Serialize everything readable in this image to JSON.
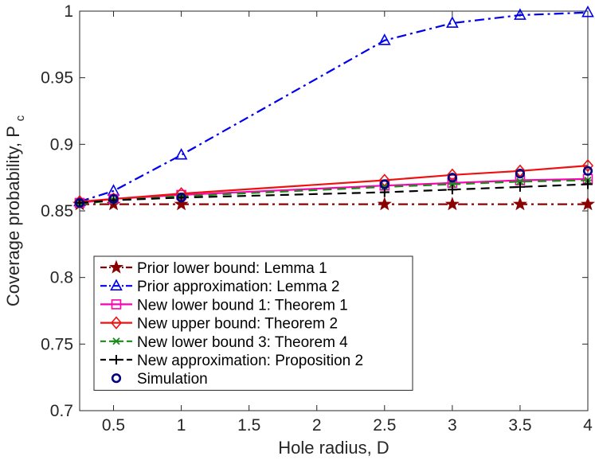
{
  "chart_data": {
    "type": "line",
    "title": "",
    "xlabel": "Hole radius, D",
    "ylabel": "Coverage probability, P",
    "ylabel_subscript": "c",
    "xlim": [
      0.25,
      4
    ],
    "ylim": [
      0.7,
      1
    ],
    "x_ticks": [
      0.5,
      1,
      1.5,
      2,
      2.5,
      3,
      3.5,
      4
    ],
    "x_tick_labels": [
      "0.5",
      "1",
      "1.5",
      "2",
      "2.5",
      "3",
      "3.5",
      "4"
    ],
    "y_ticks": [
      0.7,
      0.75,
      0.8,
      0.85,
      0.9,
      0.95,
      1
    ],
    "y_tick_labels": [
      "0.7",
      "0.75",
      "0.8",
      "0.85",
      "0.9",
      "0.95",
      "1"
    ],
    "grid": false,
    "legend_position": "bottom-left",
    "series": [
      {
        "name": "Prior lower bound: Lemma 1",
        "color": "#8b0000",
        "line_style": "dashdot",
        "marker": "star",
        "x": [
          0.25,
          0.5,
          1,
          2.5,
          3,
          3.5,
          4
        ],
        "values": [
          0.855,
          0.855,
          0.855,
          0.855,
          0.855,
          0.855,
          0.855
        ]
      },
      {
        "name": "Prior approximation: Lemma 2",
        "color": "#0000ee",
        "line_style": "dashdot",
        "marker": "triangle",
        "x": [
          0.25,
          0.5,
          1,
          2.5,
          3,
          3.5,
          4
        ],
        "values": [
          0.857,
          0.865,
          0.892,
          0.978,
          0.991,
          0.997,
          0.999
        ]
      },
      {
        "name": "New lower bound 1: Theorem 1",
        "color": "#ff00b4",
        "line_style": "solid",
        "marker": "square",
        "x": [
          0.25,
          0.5,
          1,
          2.5,
          3,
          3.5,
          4
        ],
        "values": [
          0.856,
          0.859,
          0.862,
          0.869,
          0.871,
          0.873,
          0.874
        ]
      },
      {
        "name": "New upper bound: Theorem 2",
        "color": "#ee1111",
        "line_style": "solid",
        "marker": "diamond",
        "x": [
          0.25,
          0.5,
          1,
          2.5,
          3,
          3.5,
          4
        ],
        "values": [
          0.857,
          0.859,
          0.863,
          0.873,
          0.877,
          0.88,
          0.884
        ]
      },
      {
        "name": "New lower bound 3: Theorem 4",
        "color": "#1a8a1a",
        "line_style": "dashed",
        "marker": "x",
        "x": [
          0.25,
          0.5,
          1,
          2.5,
          3,
          3.5,
          4
        ],
        "values": [
          0.855,
          0.858,
          0.861,
          0.868,
          0.87,
          0.872,
          0.873
        ]
      },
      {
        "name": "New approximation: Proposition 2",
        "color": "#000000",
        "line_style": "dashed",
        "marker": "plus",
        "x": [
          0.25,
          0.5,
          1,
          2.5,
          3,
          3.5,
          4
        ],
        "values": [
          0.856,
          0.858,
          0.86,
          0.864,
          0.866,
          0.868,
          0.87
        ]
      },
      {
        "name": "Simulation",
        "color": "#000080",
        "line_style": "none",
        "marker": "circle",
        "x": [
          0.25,
          0.5,
          1,
          2.5,
          3,
          3.5,
          4
        ],
        "values": [
          0.856,
          0.859,
          0.86,
          0.87,
          0.875,
          0.878,
          0.88
        ]
      }
    ]
  }
}
